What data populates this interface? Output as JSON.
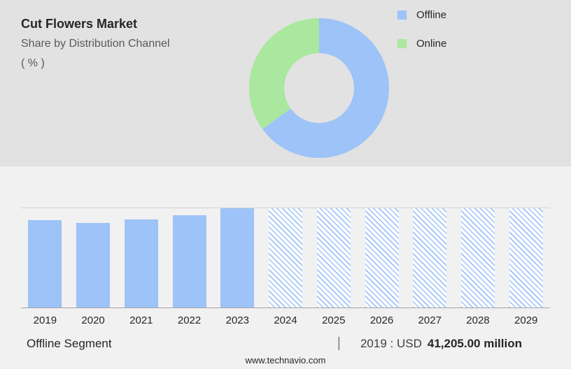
{
  "colors": {
    "top_band_bg": "#e2e2e2",
    "bottom_bg": "#f1f1f1",
    "offline_blue": "#9dc3f8",
    "online_green": "#aae79f",
    "title_text": "#262626",
    "subtitle_text": "#595959",
    "axis_line_top": "#d4d4d4",
    "axis_line_bottom": "#a6a6a6"
  },
  "header": {
    "title": "Cut Flowers Market",
    "subtitle": "Share by Distribution Channel",
    "unit_label": "( % )"
  },
  "legend": {
    "items": [
      {
        "label": "Offline",
        "color": "#9dc3f8"
      },
      {
        "label": "Online",
        "color": "#aae79f"
      }
    ]
  },
  "chart_data": [
    {
      "type": "pie",
      "subtype": "donut",
      "title": "Cut Flowers Market - Share by Distribution Channel ( % )",
      "slices": [
        {
          "label": "Offline",
          "value": 65,
          "color": "#9dc3f8"
        },
        {
          "label": "Online",
          "value": 35,
          "color": "#aae79f"
        }
      ],
      "start_angle_deg": 0,
      "direction": "clockwise",
      "inner_radius_pct": 50,
      "legend_position": "right"
    },
    {
      "type": "bar",
      "title": "Offline segment size by year (2024-2029 forecast shown hatched)",
      "categories": [
        "2019",
        "2020",
        "2021",
        "2022",
        "2023",
        "2024",
        "2025",
        "2026",
        "2027",
        "2028",
        "2029"
      ],
      "series": [
        {
          "name": "Offline segment (relative bar height, % of plot)",
          "values": [
            88,
            85,
            89,
            93,
            100,
            100,
            100,
            100,
            100,
            100,
            100
          ]
        }
      ],
      "bar_styles": [
        "solid",
        "solid",
        "solid",
        "solid",
        "solid",
        "hatched",
        "hatched",
        "hatched",
        "hatched",
        "hatched",
        "hatched"
      ],
      "known_values": {
        "2019": "USD 41,205.00 million"
      },
      "ylim": [
        0,
        100
      ],
      "grid": false,
      "legend_position": "none"
    }
  ],
  "annotation": {
    "segment_label": "Offline Segment",
    "separator": "|",
    "value_prefix": "2019 : USD",
    "value": "41,205.00 million"
  },
  "footer": {
    "website": "www.technavio.com"
  }
}
